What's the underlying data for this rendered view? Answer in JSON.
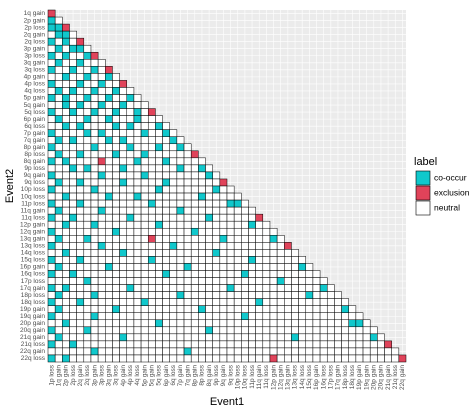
{
  "chart_data": {
    "type": "heatmap",
    "xlabel": "Event1",
    "ylabel": "Event2",
    "x": [
      "1p loss",
      "1q gain",
      "2p gain",
      "2p loss",
      "2q gain",
      "2q loss",
      "3p gain",
      "3p loss",
      "3q gain",
      "3q loss",
      "4p gain",
      "4p loss",
      "4q loss",
      "5p gain",
      "5q gain",
      "5q loss",
      "6p gain",
      "6q loss",
      "7p gain",
      "7q gain",
      "8p gain",
      "8p loss",
      "8q gain",
      "9p loss",
      "9q gain",
      "9q loss",
      "10p loss",
      "10q loss",
      "11p loss",
      "11q gain",
      "11q loss",
      "12p gain",
      "12q gain",
      "13q gain",
      "13q loss",
      "14q loss",
      "15q loss",
      "16p gain",
      "16q loss",
      "17p loss",
      "17q gain",
      "18p loss",
      "18q loss",
      "19p gain",
      "19q gain",
      "20p gain",
      "20q gain",
      "21q gain",
      "21q loss",
      "22q gain"
    ],
    "y": [
      "1q gain",
      "2p gain",
      "2p loss",
      "2q gain",
      "2q loss",
      "3p gain",
      "3p loss",
      "3q gain",
      "3q loss",
      "4p gain",
      "4p loss",
      "4q loss",
      "5p gain",
      "5q gain",
      "5q loss",
      "6p gain",
      "6q loss",
      "7p gain",
      "7q gain",
      "8p gain",
      "8p loss",
      "8q gain",
      "9p loss",
      "9q gain",
      "9q loss",
      "10p loss",
      "10q loss",
      "11p loss",
      "11q gain",
      "11q loss",
      "12p gain",
      "12q gain",
      "13q gain",
      "13q loss",
      "14q loss",
      "15q loss",
      "16p gain",
      "16q loss",
      "17p loss",
      "17q gain",
      "18p loss",
      "18q loss",
      "19p gain",
      "19q gain",
      "20p gain",
      "20q gain",
      "21q gain",
      "21q loss",
      "22q gain",
      "22q loss"
    ],
    "legend": {
      "title": "label",
      "labels": [
        "co-occur",
        "exclusion",
        "neutral"
      ],
      "colors": [
        "#10c8cc",
        "#e0435a",
        "#ffffff"
      ]
    },
    "values": [
      [
        1
      ],
      [
        0,
        2
      ],
      [
        0,
        0,
        1
      ],
      [
        2,
        0,
        0,
        2
      ],
      [
        0,
        2,
        0,
        2,
        1
      ],
      [
        2,
        0,
        2,
        0,
        0,
        2
      ],
      [
        0,
        2,
        0,
        2,
        2,
        0,
        1
      ],
      [
        2,
        0,
        2,
        2,
        0,
        2,
        2,
        2
      ],
      [
        0,
        2,
        2,
        0,
        2,
        2,
        0,
        2,
        1
      ],
      [
        2,
        2,
        0,
        2,
        2,
        0,
        2,
        2,
        0,
        2
      ],
      [
        0,
        2,
        2,
        2,
        0,
        2,
        2,
        0,
        2,
        2,
        1
      ],
      [
        2,
        0,
        2,
        0,
        2,
        2,
        0,
        2,
        2,
        0,
        2,
        2
      ],
      [
        0,
        2,
        0,
        2,
        2,
        0,
        2,
        2,
        0,
        2,
        2,
        0,
        2
      ],
      [
        2,
        2,
        0,
        2,
        0,
        2,
        2,
        0,
        2,
        2,
        0,
        2,
        2,
        2
      ],
      [
        0,
        2,
        2,
        0,
        2,
        2,
        0,
        2,
        2,
        0,
        2,
        2,
        0,
        2,
        1
      ],
      [
        2,
        0,
        2,
        2,
        2,
        0,
        2,
        2,
        0,
        2,
        2,
        2,
        0,
        2,
        2,
        2
      ],
      [
        2,
        2,
        0,
        2,
        0,
        2,
        2,
        2,
        2,
        0,
        2,
        0,
        2,
        2,
        2,
        0,
        2
      ],
      [
        0,
        2,
        2,
        2,
        2,
        0,
        2,
        0,
        2,
        2,
        2,
        2,
        2,
        0,
        2,
        2,
        0,
        2
      ],
      [
        2,
        0,
        2,
        0,
        2,
        2,
        2,
        2,
        0,
        2,
        0,
        2,
        2,
        2,
        2,
        2,
        2,
        0,
        2
      ],
      [
        0,
        2,
        2,
        2,
        2,
        2,
        0,
        2,
        2,
        2,
        2,
        0,
        2,
        2,
        2,
        0,
        2,
        2,
        0,
        2
      ],
      [
        2,
        0,
        2,
        2,
        0,
        2,
        2,
        2,
        2,
        0,
        2,
        2,
        2,
        0,
        2,
        2,
        2,
        2,
        2,
        2,
        1
      ],
      [
        0,
        2,
        0,
        2,
        2,
        2,
        2,
        1,
        2,
        2,
        2,
        2,
        0,
        2,
        2,
        2,
        0,
        2,
        2,
        2,
        2,
        2
      ],
      [
        2,
        2,
        2,
        0,
        2,
        0,
        2,
        2,
        2,
        2,
        0,
        2,
        2,
        2,
        2,
        2,
        2,
        2,
        0,
        2,
        2,
        0,
        2
      ],
      [
        0,
        2,
        2,
        2,
        2,
        2,
        2,
        0,
        2,
        2,
        2,
        2,
        2,
        0,
        2,
        2,
        2,
        2,
        2,
        2,
        2,
        2,
        0,
        2
      ],
      [
        2,
        0,
        2,
        2,
        0,
        2,
        2,
        2,
        2,
        2,
        0,
        2,
        2,
        2,
        2,
        2,
        0,
        2,
        2,
        2,
        2,
        2,
        2,
        2,
        1
      ],
      [
        0,
        2,
        2,
        2,
        2,
        2,
        0,
        2,
        2,
        2,
        2,
        2,
        2,
        2,
        2,
        0,
        2,
        2,
        2,
        2,
        2,
        2,
        2,
        0,
        2,
        2
      ],
      [
        2,
        2,
        0,
        2,
        2,
        2,
        2,
        2,
        0,
        2,
        2,
        2,
        0,
        2,
        2,
        2,
        2,
        2,
        2,
        2,
        2,
        0,
        2,
        2,
        2,
        2,
        2
      ],
      [
        0,
        2,
        2,
        2,
        0,
        2,
        2,
        2,
        2,
        2,
        2,
        2,
        2,
        2,
        0,
        2,
        2,
        2,
        2,
        2,
        2,
        2,
        2,
        2,
        2,
        0,
        0,
        2
      ],
      [
        2,
        0,
        2,
        2,
        2,
        2,
        2,
        0,
        2,
        2,
        2,
        2,
        2,
        2,
        2,
        2,
        2,
        2,
        0,
        2,
        2,
        2,
        2,
        2,
        2,
        2,
        2,
        2,
        2
      ],
      [
        0,
        2,
        2,
        0,
        2,
        2,
        2,
        2,
        2,
        2,
        2,
        0,
        2,
        2,
        2,
        2,
        2,
        2,
        2,
        2,
        2,
        2,
        0,
        2,
        2,
        2,
        2,
        2,
        2,
        1
      ],
      [
        2,
        2,
        0,
        2,
        2,
        2,
        0,
        2,
        2,
        2,
        2,
        2,
        2,
        2,
        2,
        0,
        2,
        2,
        2,
        2,
        2,
        2,
        2,
        2,
        2,
        2,
        2,
        2,
        0,
        2,
        2
      ],
      [
        0,
        2,
        2,
        2,
        2,
        2,
        2,
        2,
        2,
        0,
        2,
        2,
        2,
        2,
        2,
        2,
        2,
        2,
        2,
        2,
        0,
        2,
        2,
        2,
        2,
        2,
        2,
        2,
        2,
        2,
        2,
        2
      ],
      [
        2,
        0,
        2,
        2,
        2,
        0,
        2,
        2,
        2,
        2,
        2,
        2,
        2,
        2,
        1,
        2,
        2,
        2,
        2,
        2,
        2,
        2,
        2,
        2,
        0,
        2,
        2,
        2,
        2,
        2,
        2,
        0,
        2
      ],
      [
        0,
        2,
        2,
        2,
        2,
        2,
        2,
        0,
        2,
        2,
        2,
        2,
        2,
        2,
        2,
        2,
        2,
        0,
        2,
        2,
        2,
        2,
        2,
        2,
        2,
        2,
        2,
        2,
        2,
        2,
        2,
        2,
        2,
        1
      ],
      [
        2,
        2,
        0,
        2,
        2,
        2,
        2,
        2,
        2,
        2,
        0,
        2,
        2,
        2,
        2,
        2,
        2,
        2,
        2,
        2,
        2,
        2,
        2,
        0,
        2,
        2,
        2,
        2,
        2,
        2,
        2,
        2,
        2,
        2,
        2
      ],
      [
        0,
        2,
        2,
        2,
        0,
        2,
        2,
        2,
        2,
        2,
        2,
        2,
        2,
        2,
        0,
        2,
        2,
        2,
        2,
        2,
        2,
        2,
        2,
        2,
        2,
        2,
        2,
        2,
        0,
        2,
        2,
        2,
        2,
        2,
        2,
        2
      ],
      [
        2,
        0,
        2,
        2,
        2,
        2,
        2,
        2,
        0,
        2,
        2,
        2,
        2,
        2,
        2,
        2,
        2,
        2,
        2,
        0,
        2,
        2,
        2,
        2,
        2,
        2,
        2,
        2,
        2,
        2,
        2,
        2,
        2,
        2,
        2,
        0,
        2
      ],
      [
        0,
        2,
        2,
        0,
        2,
        2,
        2,
        2,
        2,
        2,
        2,
        2,
        2,
        2,
        2,
        2,
        0,
        2,
        2,
        2,
        2,
        2,
        2,
        2,
        2,
        2,
        2,
        0,
        2,
        2,
        2,
        2,
        2,
        2,
        2,
        2,
        2,
        2
      ],
      [
        2,
        2,
        2,
        2,
        2,
        0,
        2,
        2,
        2,
        2,
        2,
        2,
        2,
        2,
        2,
        2,
        2,
        2,
        2,
        2,
        2,
        2,
        2,
        2,
        2,
        2,
        2,
        2,
        2,
        2,
        2,
        2,
        0,
        2,
        2,
        2,
        2,
        2,
        2
      ],
      [
        0,
        2,
        0,
        2,
        2,
        2,
        2,
        2,
        2,
        2,
        2,
        0,
        2,
        2,
        2,
        2,
        2,
        2,
        2,
        2,
        2,
        2,
        2,
        2,
        2,
        0,
        2,
        2,
        2,
        2,
        2,
        2,
        2,
        2,
        2,
        2,
        2,
        2,
        0,
        2
      ],
      [
        2,
        0,
        2,
        2,
        2,
        2,
        0,
        2,
        2,
        2,
        2,
        2,
        2,
        2,
        2,
        2,
        2,
        2,
        0,
        2,
        2,
        2,
        2,
        2,
        2,
        2,
        2,
        2,
        2,
        2,
        2,
        2,
        2,
        2,
        2,
        2,
        0,
        2,
        2,
        2,
        2
      ],
      [
        0,
        2,
        2,
        2,
        0,
        2,
        2,
        2,
        2,
        2,
        2,
        2,
        2,
        0,
        2,
        2,
        2,
        2,
        2,
        2,
        2,
        2,
        2,
        2,
        2,
        2,
        2,
        2,
        2,
        0,
        2,
        2,
        2,
        2,
        2,
        2,
        2,
        2,
        2,
        2,
        2,
        2
      ],
      [
        2,
        0,
        2,
        2,
        2,
        2,
        2,
        2,
        2,
        0,
        2,
        2,
        2,
        2,
        2,
        2,
        2,
        2,
        2,
        2,
        2,
        0,
        2,
        2,
        2,
        2,
        2,
        2,
        2,
        2,
        2,
        2,
        2,
        2,
        2,
        2,
        2,
        2,
        2,
        2,
        2,
        0,
        2
      ],
      [
        0,
        2,
        2,
        2,
        2,
        2,
        0,
        2,
        2,
        2,
        2,
        2,
        2,
        2,
        2,
        2,
        2,
        2,
        2,
        2,
        2,
        2,
        2,
        2,
        2,
        2,
        2,
        0,
        2,
        2,
        2,
        2,
        2,
        2,
        2,
        2,
        2,
        2,
        2,
        2,
        2,
        2,
        2,
        2
      ],
      [
        2,
        2,
        0,
        2,
        2,
        2,
        2,
        2,
        2,
        2,
        2,
        2,
        2,
        2,
        2,
        0,
        2,
        2,
        2,
        2,
        2,
        2,
        2,
        2,
        2,
        2,
        2,
        2,
        2,
        2,
        2,
        2,
        2,
        2,
        2,
        2,
        2,
        2,
        2,
        2,
        2,
        2,
        0,
        0,
        2
      ],
      [
        0,
        2,
        2,
        2,
        2,
        0,
        2,
        2,
        2,
        2,
        2,
        2,
        2,
        2,
        2,
        2,
        2,
        2,
        2,
        2,
        2,
        2,
        0,
        2,
        2,
        2,
        2,
        2,
        2,
        2,
        2,
        2,
        2,
        2,
        2,
        2,
        2,
        2,
        2,
        2,
        2,
        2,
        2,
        2,
        2,
        2
      ],
      [
        2,
        0,
        2,
        2,
        2,
        2,
        2,
        2,
        2,
        2,
        0,
        2,
        2,
        2,
        2,
        2,
        2,
        2,
        2,
        2,
        2,
        2,
        2,
        2,
        2,
        2,
        2,
        2,
        2,
        2,
        2,
        2,
        2,
        2,
        0,
        2,
        2,
        2,
        2,
        2,
        2,
        2,
        2,
        2,
        2,
        0,
        2
      ],
      [
        0,
        2,
        2,
        0,
        2,
        2,
        2,
        2,
        2,
        2,
        2,
        2,
        2,
        2,
        2,
        2,
        2,
        2,
        2,
        2,
        2,
        2,
        2,
        2,
        2,
        2,
        2,
        2,
        2,
        2,
        2,
        2,
        2,
        2,
        2,
        2,
        2,
        2,
        2,
        2,
        2,
        2,
        2,
        2,
        2,
        2,
        2,
        1
      ],
      [
        2,
        2,
        2,
        2,
        2,
        2,
        0,
        2,
        2,
        2,
        2,
        2,
        2,
        2,
        2,
        2,
        2,
        2,
        2,
        0,
        2,
        2,
        2,
        2,
        2,
        2,
        2,
        2,
        2,
        2,
        2,
        2,
        2,
        2,
        2,
        2,
        2,
        2,
        2,
        2,
        2,
        2,
        2,
        2,
        2,
        2,
        2,
        2,
        2
      ],
      [
        0,
        2,
        0,
        2,
        2,
        2,
        2,
        2,
        2,
        2,
        2,
        2,
        2,
        2,
        2,
        2,
        2,
        2,
        2,
        2,
        2,
        2,
        2,
        2,
        2,
        2,
        2,
        2,
        2,
        2,
        2,
        1,
        2,
        2,
        2,
        2,
        2,
        2,
        2,
        2,
        2,
        2,
        2,
        2,
        2,
        2,
        2,
        2,
        2,
        1
      ]
    ]
  }
}
